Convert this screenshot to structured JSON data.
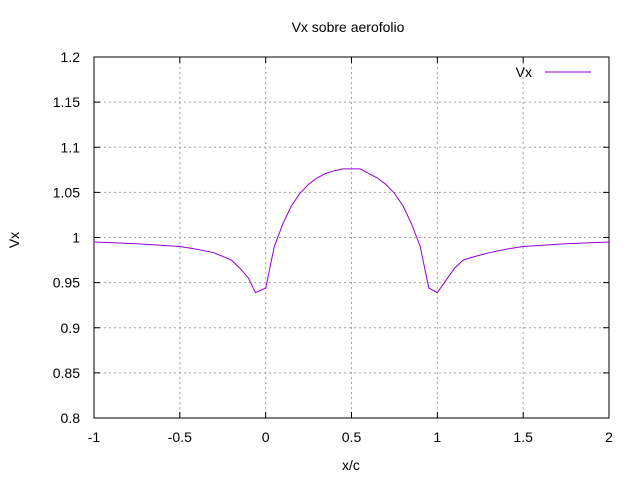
{
  "chart_data": {
    "type": "line",
    "title": "Vx sobre aerofolio",
    "xlabel": "x/c",
    "ylabel": "Vx",
    "xlim": [
      -1,
      2
    ],
    "ylim": [
      0.8,
      1.2
    ],
    "xticks": [
      -1,
      -0.5,
      0,
      0.5,
      1,
      1.5,
      2
    ],
    "xtick_labels": [
      "-1",
      "-0.5",
      "0",
      "0.5",
      "1",
      "1.5",
      "2"
    ],
    "yticks": [
      0.8,
      0.85,
      0.9,
      0.95,
      1,
      1.05,
      1.1,
      1.15,
      1.2
    ],
    "ytick_labels": [
      "0.8",
      "0.85",
      "0.9",
      "0.95",
      "1",
      "1.05",
      "1.1",
      "1.15",
      "1.2"
    ],
    "grid": true,
    "legend_position": "top-right",
    "series": [
      {
        "name": "Vx",
        "color": "#9400d3",
        "x": [
          -1,
          -0.75,
          -0.5,
          -0.4,
          -0.3,
          -0.2,
          -0.15,
          -0.1,
          -0.06,
          0,
          0.05,
          0.1,
          0.15,
          0.2,
          0.25,
          0.3,
          0.35,
          0.4,
          0.45,
          0.5,
          0.55,
          0.6,
          0.65,
          0.7,
          0.75,
          0.8,
          0.85,
          0.9,
          0.95,
          1,
          1.06,
          1.1,
          1.15,
          1.2,
          1.3,
          1.4,
          1.5,
          1.75,
          2
        ],
        "y": [
          0.995,
          0.993,
          0.99,
          0.987,
          0.983,
          0.975,
          0.966,
          0.955,
          0.939,
          0.944,
          0.99,
          1.015,
          1.035,
          1.049,
          1.059,
          1.066,
          1.071,
          1.074,
          1.076,
          1.076,
          1.076,
          1.071,
          1.066,
          1.059,
          1.049,
          1.035,
          1.015,
          0.99,
          0.944,
          0.939,
          0.955,
          0.966,
          0.975,
          0.978,
          0.983,
          0.987,
          0.99,
          0.993,
          0.995
        ]
      }
    ]
  }
}
